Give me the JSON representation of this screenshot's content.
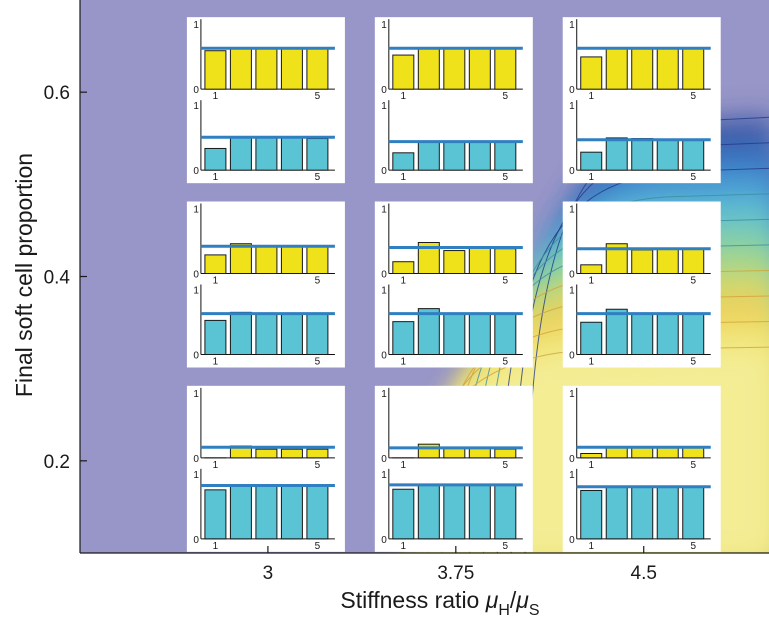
{
  "chart_data": {
    "type": "contour",
    "xlabel_main": "Stiffness ratio ",
    "xlabel_mu": "μ",
    "xlabel_sub_H": "H",
    "xlabel_slash": "/",
    "xlabel_mu2": "μ",
    "xlabel_sub_S": "S",
    "ylabel": "Final soft cell proportion",
    "x_ticks": [
      "3",
      "3.75",
      "4.5"
    ],
    "x_tick_values": [
      3,
      3.75,
      4.5
    ],
    "y_ticks": [
      "0.2",
      "0.4",
      "0.6"
    ],
    "y_tick_values": [
      0.2,
      0.4,
      0.6
    ],
    "xlim": [
      2.25,
      5.0
    ],
    "ylim": [
      0.1,
      0.7
    ],
    "colors": {
      "background": "#9896c8",
      "contour_levels": [
        "#2e4fa0",
        "#3a77c4",
        "#4aa0d8",
        "#5fbfd4",
        "#7fcfb0",
        "#a7d68a",
        "#d9d86a",
        "#f2cf58",
        "#f0e77a",
        "#f4ef9a"
      ],
      "yellow_bar": "#efe11a",
      "cyan_bar": "#5ac3d4",
      "reference_line": "#2f7fc1"
    },
    "inset_axis_labels": {
      "y_top": "1",
      "y_bottom": "0",
      "x_left": "1",
      "x_right": "5"
    },
    "insets": [
      {
        "x": 3,
        "y": 0.6,
        "top": [
          0.62,
          0.67,
          0.67,
          0.67,
          0.66
        ],
        "top_ref": 0.66,
        "bottom": [
          0.35,
          0.53,
          0.53,
          0.52,
          0.51
        ],
        "bottom_ref": 0.53
      },
      {
        "x": 3.75,
        "y": 0.6,
        "top": [
          0.55,
          0.66,
          0.65,
          0.65,
          0.65
        ],
        "top_ref": 0.66,
        "bottom": [
          0.28,
          0.47,
          0.46,
          0.45,
          0.46
        ],
        "bottom_ref": 0.46
      },
      {
        "x": 4.5,
        "y": 0.6,
        "top": [
          0.52,
          0.65,
          0.65,
          0.65,
          0.65
        ],
        "top_ref": 0.66,
        "bottom": [
          0.29,
          0.52,
          0.51,
          0.49,
          0.49
        ],
        "bottom_ref": 0.49
      },
      {
        "x": 3,
        "y": 0.4,
        "top": [
          0.3,
          0.48,
          0.45,
          0.44,
          0.45
        ],
        "top_ref": 0.44,
        "bottom": [
          0.55,
          0.68,
          0.66,
          0.65,
          0.65
        ],
        "bottom_ref": 0.66
      },
      {
        "x": 3.75,
        "y": 0.4,
        "top": [
          0.19,
          0.5,
          0.37,
          0.42,
          0.4
        ],
        "top_ref": 0.42,
        "bottom": [
          0.53,
          0.74,
          0.66,
          0.66,
          0.65
        ],
        "bottom_ref": 0.66
      },
      {
        "x": 4.5,
        "y": 0.4,
        "top": [
          0.14,
          0.48,
          0.38,
          0.4,
          0.4
        ],
        "top_ref": 0.4,
        "bottom": [
          0.52,
          0.73,
          0.67,
          0.66,
          0.66
        ],
        "bottom_ref": 0.66
      },
      {
        "x": 3,
        "y": 0.2,
        "top": [
          0.0,
          0.19,
          0.14,
          0.14,
          0.14
        ],
        "top_ref": 0.17,
        "bottom": [
          0.79,
          0.87,
          0.86,
          0.86,
          0.86
        ],
        "bottom_ref": 0.86
      },
      {
        "x": 3.75,
        "y": 0.2,
        "top": [
          0.0,
          0.22,
          0.15,
          0.16,
          0.14
        ],
        "top_ref": 0.16,
        "bottom": [
          0.8,
          0.88,
          0.87,
          0.87,
          0.87
        ],
        "bottom_ref": 0.87
      },
      {
        "x": 4.5,
        "y": 0.2,
        "top": [
          0.07,
          0.18,
          0.16,
          0.16,
          0.16
        ],
        "top_ref": 0.17,
        "bottom": [
          0.78,
          0.84,
          0.84,
          0.84,
          0.83
        ],
        "bottom_ref": 0.84
      }
    ]
  }
}
